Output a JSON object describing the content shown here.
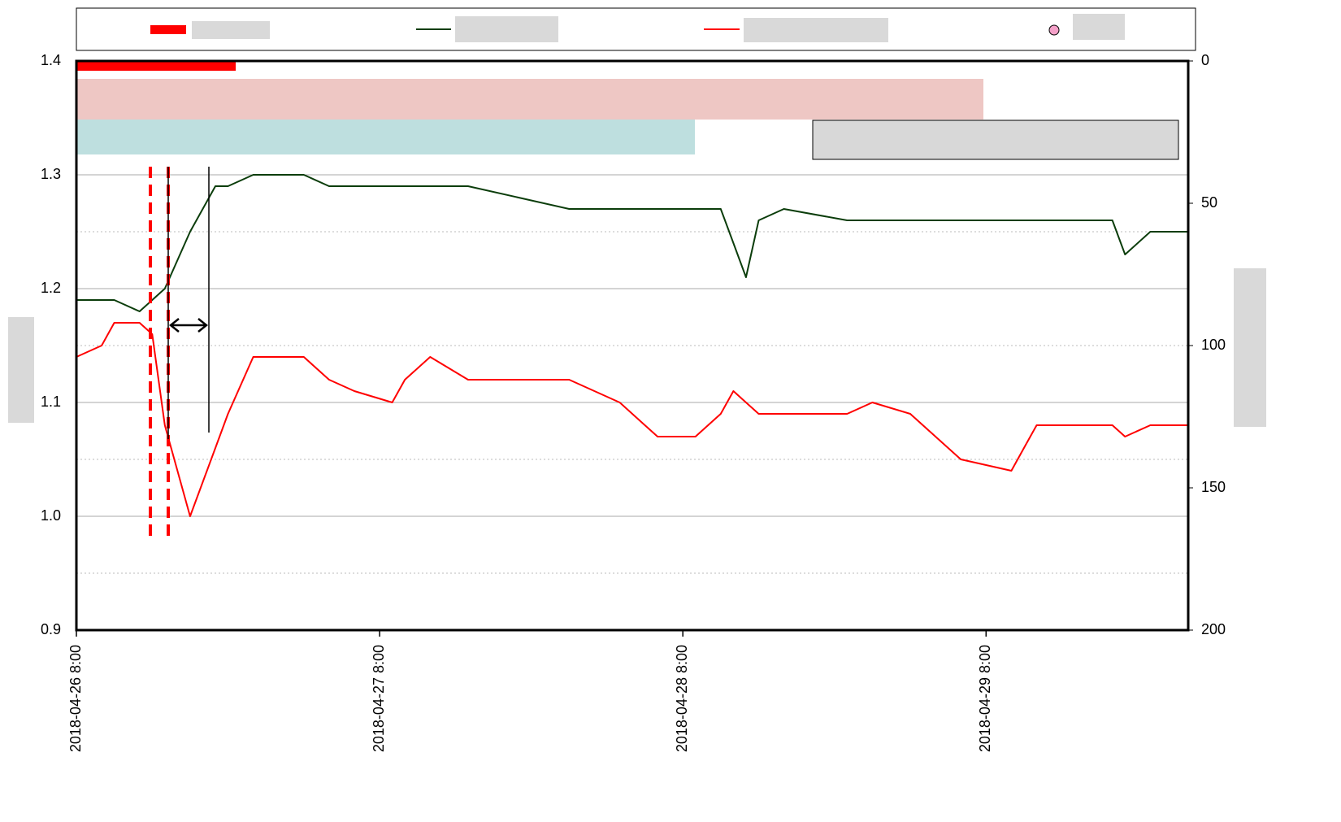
{
  "chart_data": {
    "type": "line",
    "x": [
      "2018-04-26 8:00",
      "2018-04-26 10:00",
      "2018-04-26 11:00",
      "2018-04-26 13:00",
      "2018-04-26 14:00",
      "2018-04-26 15:00",
      "2018-04-26 17:00",
      "2018-04-26 19:00",
      "2018-04-26 20:00",
      "2018-04-26 22:00",
      "2018-04-26 23:00",
      "2018-04-27 2:00",
      "2018-04-27 4:00",
      "2018-04-27 6:00",
      "2018-04-27 9:00",
      "2018-04-27 10:00",
      "2018-04-27 12:00",
      "2018-04-27 15:00",
      "2018-04-27 19:00",
      "2018-04-27 23:00",
      "2018-04-28 1:00",
      "2018-04-28 3:00",
      "2018-04-28 5:00",
      "2018-04-28 6:00",
      "2018-04-28 9:00",
      "2018-04-28 11:00",
      "2018-04-28 12:00",
      "2018-04-28 13:00",
      "2018-04-28 14:00",
      "2018-04-28 16:00",
      "2018-04-28 21:00",
      "2018-04-28 23:00",
      "2018-04-29 2:00",
      "2018-04-29 4:00",
      "2018-04-29 6:00",
      "2018-04-29 10:00",
      "2018-04-29 11:00",
      "2018-04-29 12:00",
      "2018-04-29 18:00",
      "2018-04-29 19:00",
      "2018-04-29 21:00",
      "2018-04-30 0:00"
    ],
    "series": [
      {
        "color": "#0b3d0b",
        "values": [
          1.19,
          1.19,
          1.19,
          1.18,
          1.19,
          1.2,
          1.25,
          1.29,
          1.29,
          1.3,
          1.3,
          1.3,
          1.29,
          1.29,
          1.29,
          1.29,
          1.29,
          1.29,
          1.28,
          1.27,
          1.27,
          1.27,
          1.27,
          1.27,
          1.27,
          1.27,
          1.24,
          1.21,
          1.26,
          1.27,
          1.26,
          1.26,
          1.26,
          1.26,
          1.26,
          1.26,
          1.26,
          1.26,
          1.26,
          1.23,
          1.25,
          1.25
        ]
      },
      {
        "color": "#ff0000",
        "values": [
          1.14,
          1.15,
          1.17,
          1.17,
          1.16,
          1.08,
          1.0,
          1.06,
          1.09,
          1.14,
          1.14,
          1.14,
          1.12,
          1.11,
          1.1,
          1.12,
          1.14,
          1.12,
          1.12,
          1.12,
          1.11,
          1.1,
          1.08,
          1.07,
          1.07,
          1.09,
          1.11,
          1.1,
          1.09,
          1.09,
          1.09,
          1.1,
          1.09,
          1.07,
          1.05,
          1.04,
          1.06,
          1.08,
          1.08,
          1.07,
          1.08,
          1.08
        ]
      }
    ],
    "xlim": [
      "2018-04-26 8:00",
      "2018-04-30 0:00"
    ],
    "xticks": [
      "2018-04-26 8:00",
      "2018-04-27 8:00",
      "2018-04-28 8:00",
      "2018-04-29 8:00"
    ],
    "ylim": [
      0.9,
      1.4
    ],
    "yticks": [
      0.9,
      {
        "value": 1,
        "label": "1.0"
      },
      1.1,
      1.2,
      1.3,
      1.4
    ],
    "y2lim": [
      200,
      0
    ],
    "y2ticks": [
      0,
      50,
      100,
      150,
      200
    ],
    "grid": true
  }
}
